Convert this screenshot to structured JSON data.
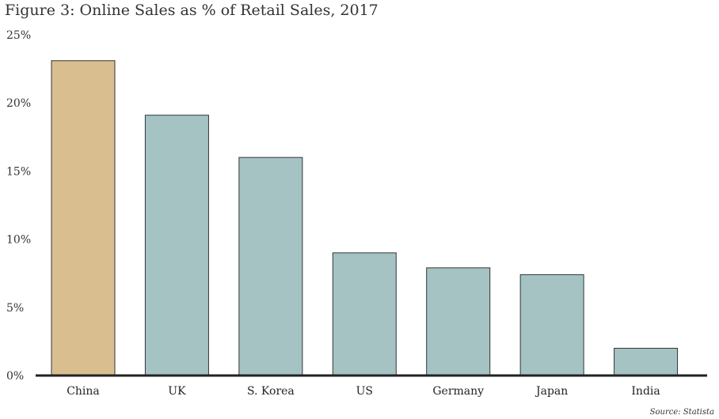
{
  "chart_data": {
    "type": "bar",
    "title": "Figure 3: Online Sales as % of Retail Sales, 2017",
    "categories": [
      "China",
      "UK",
      "S. Korea",
      "US",
      "Germany",
      "Japan",
      "India"
    ],
    "values": [
      23.1,
      19.1,
      16.0,
      9.0,
      7.9,
      7.4,
      2.0
    ],
    "yticks": [
      "0%",
      "5%",
      "10%",
      "15%",
      "20%",
      "25%"
    ],
    "ylim": [
      0,
      25
    ],
    "xlabel": "",
    "ylabel": "",
    "grid": false,
    "colors": {
      "highlight": "#d9bf8f",
      "default": "#a6c3c4",
      "outline": "#333333"
    },
    "highlight_index": 0
  },
  "source": "Source: Statista"
}
